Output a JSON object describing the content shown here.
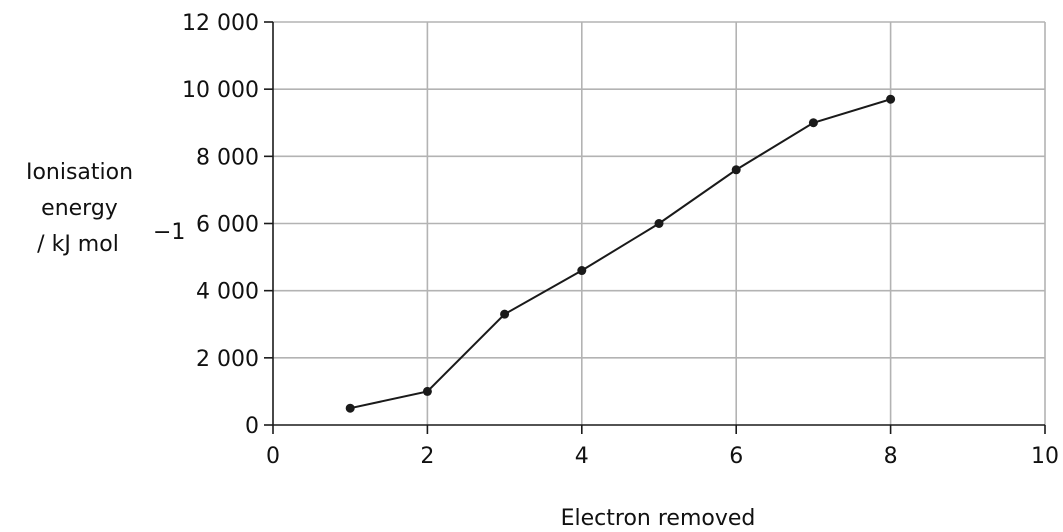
{
  "chart_data": {
    "type": "line",
    "title": "",
    "xlabel": "Electron removed",
    "ylabel_lines": [
      "Ionisation",
      "energy",
      "/ kJ mol"
    ],
    "ylabel_superscript": "−1",
    "xlim": [
      0,
      10
    ],
    "ylim": [
      0,
      12000
    ],
    "x_ticks": [
      0,
      2,
      4,
      6,
      8,
      10
    ],
    "x_tick_labels": [
      "0",
      "2",
      "4",
      "6",
      "8",
      "10"
    ],
    "y_ticks": [
      0,
      2000,
      4000,
      6000,
      8000,
      10000,
      12000
    ],
    "y_tick_labels": [
      "0",
      "2 000",
      "4 000",
      "6 000",
      "8 000",
      "10 000",
      "12 000"
    ],
    "grid": true,
    "series": [
      {
        "x": [
          1,
          2,
          3,
          4,
          5,
          6,
          7,
          8
        ],
        "y": [
          500,
          1000,
          3300,
          4600,
          6000,
          7600,
          9000,
          9700
        ]
      }
    ],
    "colors": {
      "line": "#1a1a1a",
      "grid": "#b3b3b3",
      "axis": "#1a1a1a"
    }
  }
}
